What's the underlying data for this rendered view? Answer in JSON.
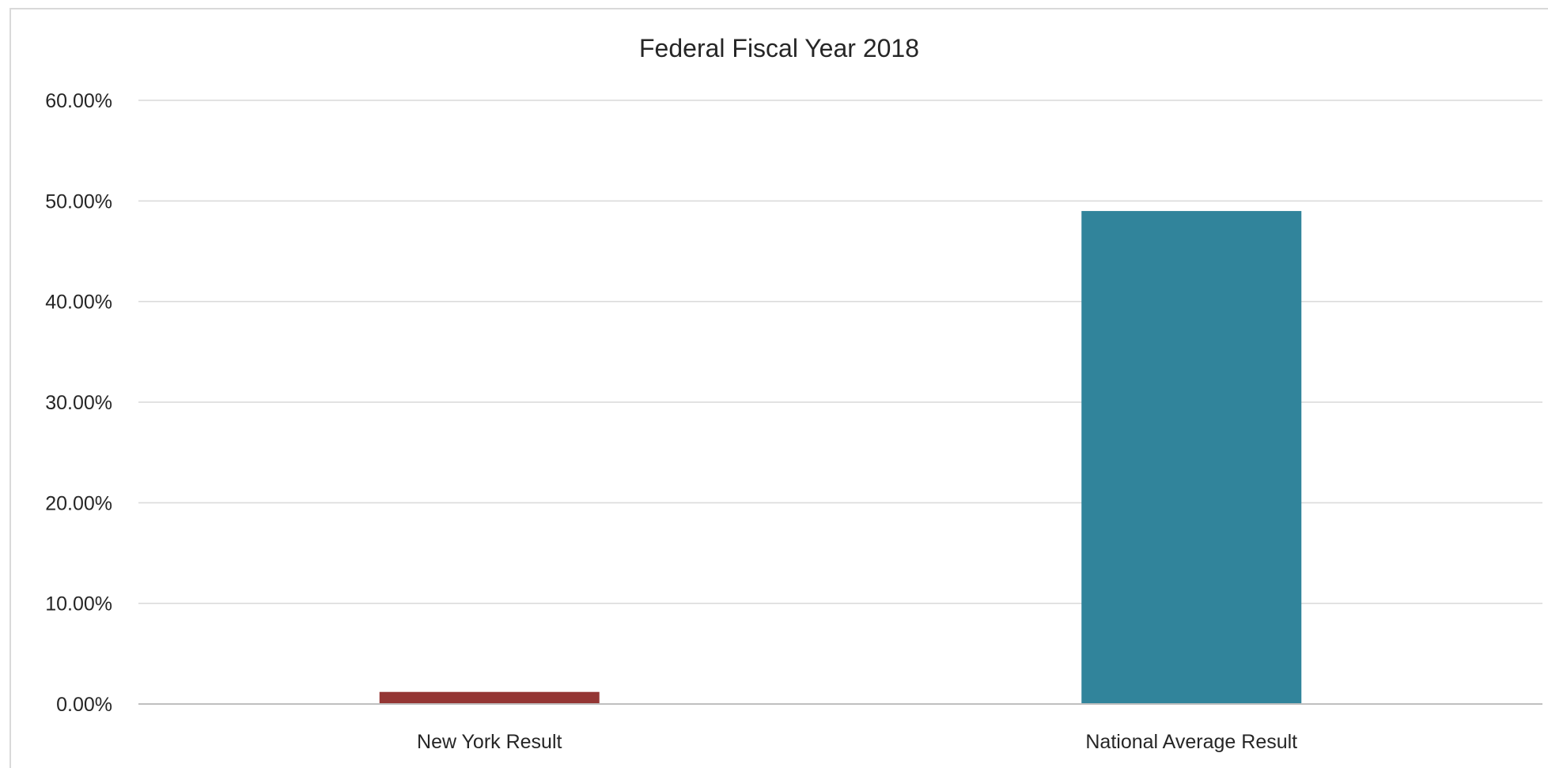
{
  "chart_data": {
    "type": "bar",
    "title": "Federal Fiscal Year 2018",
    "xlabel": "",
    "ylabel": "",
    "categories": [
      "New York Result",
      "National Average Result"
    ],
    "values": [
      1.2,
      49.0
    ],
    "value_format": "percent",
    "ylim": [
      0,
      60
    ],
    "yticks": [
      0,
      10,
      20,
      30,
      40,
      50,
      60
    ],
    "ytick_labels": [
      "0.00%",
      "10.00%",
      "20.00%",
      "30.00%",
      "40.00%",
      "50.00%",
      "60.00%"
    ],
    "bar_colors": [
      "#943634",
      "#31849b"
    ],
    "grid": true,
    "legend": "none"
  }
}
